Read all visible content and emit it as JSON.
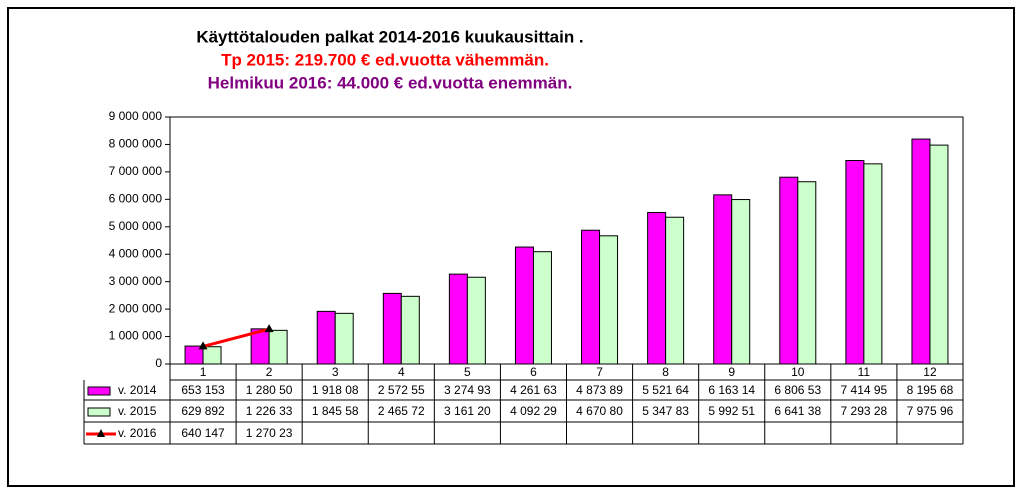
{
  "chart_data": {
    "type": "bar",
    "title": "Käyttötalouden palkat 2014-2016 kuukausittain .",
    "subtitle": "Tp  2015: 219.700 € ed.vuotta vähemmän.",
    "annotation": "Helmikuu 2016: 44.000 € ed.vuotta enemmän.",
    "categories": [
      "1",
      "2",
      "3",
      "4",
      "5",
      "6",
      "7",
      "8",
      "9",
      "10",
      "11",
      "12"
    ],
    "series": [
      {
        "name": "v. 2014",
        "color": "#ff00ff",
        "type": "bar",
        "values": [
          653153,
          1280500,
          1918080,
          2572550,
          3274930,
          4261630,
          4873890,
          5521640,
          6163140,
          6806530,
          7414950,
          8195680
        ],
        "value_labels": [
          "653 153",
          "1 280 50",
          "1 918 08",
          "2 572 55",
          "3 274 93",
          "4 261 63",
          "4 873 89",
          "5 521 64",
          "6 163 14",
          "6 806 53",
          "7 414 95",
          "8 195 68"
        ]
      },
      {
        "name": "v. 2015",
        "color": "#ccffcc",
        "type": "bar",
        "values": [
          629892,
          1226330,
          1845580,
          2465720,
          3161200,
          4092290,
          4670800,
          5347830,
          5992510,
          6641380,
          7293280,
          7975960
        ],
        "value_labels": [
          "629 892",
          "1 226 33",
          "1 845 58",
          "2 465 72",
          "3 161 20",
          "4 092 29",
          "4 670 80",
          "5 347 83",
          "5 992 51",
          "6 641 38",
          "7 293 28",
          "7 975 96"
        ]
      },
      {
        "name": "v. 2016",
        "color": "#ff0000",
        "type": "line",
        "values": [
          640147,
          1270230,
          null,
          null,
          null,
          null,
          null,
          null,
          null,
          null,
          null,
          null
        ],
        "value_labels": [
          "640 147",
          "1 270 23",
          null,
          null,
          null,
          null,
          null,
          null,
          null,
          null,
          null,
          null
        ]
      }
    ],
    "ylim": [
      0,
      9000000
    ],
    "yticks": [
      0,
      {
        "value": 1000000,
        "label": "1 000 000"
      },
      {
        "value": 2000000,
        "label": "2 000 000"
      },
      {
        "value": 3000000,
        "label": "3 000 000"
      },
      {
        "value": 4000000,
        "label": "4 000 000"
      },
      {
        "value": 5000000,
        "label": "5 000 000"
      },
      {
        "value": 6000000,
        "label": "6 000 000"
      },
      {
        "value": 7000000,
        "label": "7 000 000"
      },
      {
        "value": 8000000,
        "label": "8 000 000"
      },
      {
        "value": 9000000,
        "label": "9 000 000"
      }
    ],
    "grid": false
  }
}
